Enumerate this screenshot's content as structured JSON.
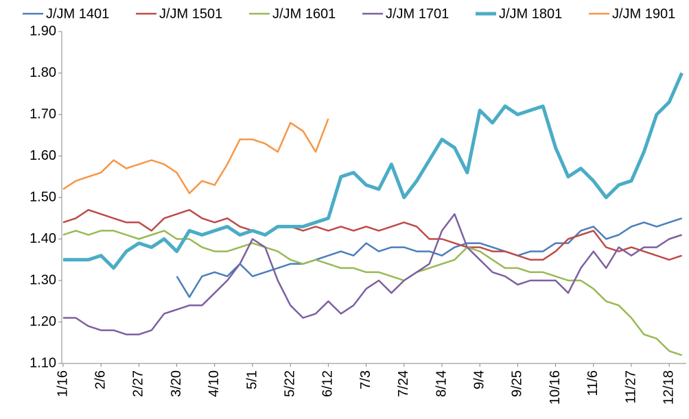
{
  "chart_data": {
    "type": "line",
    "categories": [
      "1/16",
      null,
      null,
      "2/6",
      null,
      null,
      "2/27",
      null,
      null,
      "3/20",
      null,
      null,
      "4/10",
      null,
      null,
      "5/1",
      null,
      null,
      "5/22",
      null,
      null,
      "6/12",
      null,
      null,
      "7/3",
      null,
      null,
      "7/24",
      null,
      null,
      "8/14",
      null,
      null,
      "9/4",
      null,
      null,
      "9/25",
      null,
      null,
      "10/16",
      null,
      null,
      "11/6",
      null,
      null,
      "11/27",
      null,
      null,
      "12/18",
      null
    ],
    "series": [
      {
        "name": "J/JM 1401",
        "color": "#4a7ebb",
        "width": 2.5,
        "values": [
          null,
          null,
          null,
          null,
          null,
          null,
          null,
          null,
          null,
          1.31,
          1.26,
          1.31,
          1.32,
          1.31,
          1.34,
          1.31,
          1.32,
          1.33,
          1.34,
          1.34,
          1.35,
          1.36,
          1.37,
          1.36,
          1.39,
          1.37,
          1.38,
          1.38,
          1.37,
          1.37,
          1.36,
          1.38,
          1.39,
          1.39,
          1.38,
          1.37,
          1.36,
          1.37,
          1.37,
          1.39,
          1.39,
          1.42,
          1.43,
          1.4,
          1.41,
          1.43,
          1.44,
          1.43,
          1.44,
          1.45
        ]
      },
      {
        "name": "J/JM 1501",
        "color": "#be4b48",
        "width": 2.5,
        "values": [
          1.44,
          1.45,
          1.47,
          1.46,
          1.45,
          1.44,
          1.44,
          1.42,
          1.45,
          1.46,
          1.47,
          1.45,
          1.44,
          1.45,
          1.43,
          1.42,
          1.41,
          1.43,
          1.43,
          1.42,
          1.43,
          1.42,
          1.43,
          1.42,
          1.43,
          1.42,
          1.43,
          1.44,
          1.43,
          1.4,
          1.4,
          1.39,
          1.38,
          1.38,
          1.37,
          1.37,
          1.36,
          1.35,
          1.35,
          1.37,
          1.4,
          1.41,
          1.42,
          1.38,
          1.37,
          1.38,
          1.37,
          1.36,
          1.35,
          1.36
        ]
      },
      {
        "name": "J/JM 1601",
        "color": "#98b954",
        "width": 2.5,
        "values": [
          1.41,
          1.42,
          1.41,
          1.42,
          1.42,
          1.41,
          1.4,
          1.41,
          1.42,
          1.4,
          1.4,
          1.38,
          1.37,
          1.37,
          1.38,
          1.39,
          1.38,
          1.37,
          1.35,
          1.34,
          1.35,
          1.34,
          1.33,
          1.33,
          1.32,
          1.32,
          1.31,
          1.3,
          1.32,
          1.33,
          1.34,
          1.35,
          1.38,
          1.37,
          1.35,
          1.33,
          1.33,
          1.32,
          1.32,
          1.31,
          1.3,
          1.3,
          1.28,
          1.25,
          1.24,
          1.21,
          1.17,
          1.16,
          1.13,
          1.12
        ]
      },
      {
        "name": "J/JM 1701",
        "color": "#7d60a0",
        "width": 2.5,
        "values": [
          1.21,
          1.21,
          1.19,
          1.18,
          1.18,
          1.17,
          1.17,
          1.18,
          1.22,
          1.23,
          1.24,
          1.24,
          1.27,
          1.3,
          1.34,
          1.4,
          1.38,
          1.3,
          1.24,
          1.21,
          1.22,
          1.25,
          1.22,
          1.24,
          1.28,
          1.3,
          1.27,
          1.3,
          1.32,
          1.34,
          1.42,
          1.46,
          1.38,
          1.35,
          1.32,
          1.31,
          1.29,
          1.3,
          1.3,
          1.3,
          1.27,
          1.33,
          1.37,
          1.33,
          1.38,
          1.36,
          1.38,
          1.38,
          1.4,
          1.41
        ]
      },
      {
        "name": "J/JM 1801",
        "color": "#4bacc6",
        "width": 5,
        "values": [
          1.35,
          1.35,
          1.35,
          1.36,
          1.33,
          1.37,
          1.39,
          1.38,
          1.4,
          1.37,
          1.42,
          1.41,
          1.42,
          1.43,
          1.41,
          1.42,
          1.41,
          1.43,
          1.43,
          1.43,
          1.44,
          1.45,
          1.55,
          1.56,
          1.53,
          1.52,
          1.58,
          1.5,
          1.54,
          1.59,
          1.64,
          1.62,
          1.56,
          1.71,
          1.68,
          1.72,
          1.7,
          1.71,
          1.72,
          1.62,
          1.55,
          1.57,
          1.54,
          1.5,
          1.53,
          1.54,
          1.61,
          1.7,
          1.73,
          1.8
        ]
      },
      {
        "name": "J/JM 1901",
        "color": "#f79646",
        "width": 2.5,
        "values": [
          1.52,
          1.54,
          1.55,
          1.56,
          1.59,
          1.57,
          1.58,
          1.59,
          1.58,
          1.56,
          1.51,
          1.54,
          1.53,
          1.58,
          1.64,
          1.64,
          1.63,
          1.61,
          1.68,
          1.66,
          1.61,
          1.69,
          null,
          null,
          null,
          null,
          null,
          null,
          null,
          null,
          null,
          null,
          null,
          null,
          null,
          null,
          null,
          null,
          null,
          null,
          null,
          null,
          null,
          null,
          null,
          null,
          null,
          null,
          null,
          null
        ]
      }
    ],
    "ylim": [
      1.1,
      1.9
    ],
    "yticks": [
      {
        "value": 1.1,
        "label": "1.10"
      },
      {
        "value": 1.2,
        "label": "1.20"
      },
      {
        "value": 1.3,
        "label": "1.30"
      },
      {
        "value": 1.4,
        "label": "1.40"
      },
      {
        "value": 1.5,
        "label": "1.50"
      },
      {
        "value": 1.6,
        "label": "1.60"
      },
      {
        "value": 1.7,
        "label": "1.70"
      },
      {
        "value": 1.8,
        "label": "1.80"
      },
      {
        "value": 1.9,
        "label": "1.90"
      }
    ],
    "legend": "top"
  }
}
